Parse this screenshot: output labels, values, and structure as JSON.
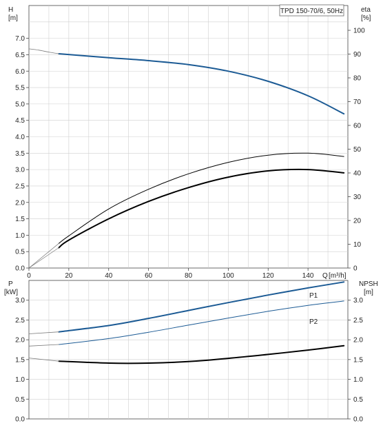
{
  "title": "TPD 150-70/6, 50Hz",
  "colors": {
    "grid": "#cfcfcf",
    "axis": "#444444",
    "blue": "#1b5a94",
    "black": "#000000",
    "thin": "#7a7a7a"
  },
  "top_panel": {
    "left_axis": {
      "name": "H",
      "unit": "[m]"
    },
    "right_axis": {
      "name": "eta",
      "unit": "[%]"
    },
    "x_axis": {
      "name": "Q",
      "unit": "[m³/h]"
    }
  },
  "bottom_panel": {
    "left_axis": {
      "name": "P",
      "unit": "[kW]"
    },
    "right_axis": {
      "name": "NPSH",
      "unit": "[m]"
    },
    "labels": {
      "p1": "P1",
      "p2": "P2"
    }
  },
  "chart_data": [
    {
      "type": "line",
      "x": {
        "ticks": [
          0,
          20,
          40,
          60,
          80,
          100,
          120,
          140
        ],
        "tick_labels": [
          "0",
          "20",
          "40",
          "60",
          "80",
          "100",
          "120",
          "140"
        ],
        "range": [
          0,
          160
        ]
      },
      "y_left": {
        "ticks": [
          0,
          0.5,
          1,
          1.5,
          2,
          2.5,
          3,
          3.5,
          4,
          4.5,
          5,
          5.5,
          6,
          6.5,
          7
        ],
        "tick_labels": [
          "0.0",
          "0.5",
          "1.0",
          "1.5",
          "2.0",
          "2.5",
          "3.0",
          "3.5",
          "4.0",
          "4.5",
          "5.0",
          "5.5",
          "6.0",
          "6.5",
          "7.0"
        ],
        "range": [
          0,
          8
        ]
      },
      "y_right": {
        "ticks": [
          0,
          10,
          20,
          30,
          40,
          50,
          60,
          70,
          80,
          90,
          100
        ],
        "tick_labels": [
          "0",
          "10",
          "20",
          "30",
          "40",
          "50",
          "60",
          "70",
          "80",
          "90",
          "100"
        ],
        "range": [
          0,
          100
        ]
      },
      "grid": true,
      "series": [
        {
          "id": "H",
          "axis": "left",
          "color": "blue",
          "width": 2,
          "x": [
            15,
            40,
            60,
            80,
            100,
            120,
            140,
            158
          ],
          "y": [
            6.53,
            6.41,
            6.32,
            6.2,
            6.0,
            5.69,
            5.25,
            4.7
          ]
        },
        {
          "id": "H_ext",
          "axis": "left",
          "color": "thin",
          "width": 0.8,
          "x": [
            0,
            5,
            10,
            15
          ],
          "y": [
            6.68,
            6.64,
            6.58,
            6.53
          ]
        },
        {
          "id": "eta_upper",
          "axis": "left",
          "color": "black",
          "width": 1,
          "x": [
            15,
            20,
            40,
            60,
            80,
            100,
            120,
            140,
            158
          ],
          "y": [
            0.75,
            0.98,
            1.8,
            2.4,
            2.87,
            3.22,
            3.44,
            3.5,
            3.4
          ]
        },
        {
          "id": "eta_lower",
          "axis": "left",
          "color": "black",
          "width": 2,
          "x": [
            15,
            20,
            40,
            60,
            80,
            100,
            120,
            140,
            158
          ],
          "y": [
            0.62,
            0.85,
            1.5,
            2.03,
            2.45,
            2.77,
            2.96,
            3.0,
            2.9
          ]
        },
        {
          "id": "eta_ext_a",
          "axis": "left",
          "color": "thin",
          "width": 0.7,
          "x": [
            0,
            15
          ],
          "y": [
            0,
            0.75
          ]
        },
        {
          "id": "eta_ext_b",
          "axis": "left",
          "color": "thin",
          "width": 0.7,
          "x": [
            0,
            15
          ],
          "y": [
            0,
            0.62
          ]
        }
      ]
    },
    {
      "type": "line",
      "x": {
        "range": [
          0,
          160
        ]
      },
      "y_left": {
        "ticks": [
          0,
          0.5,
          1,
          1.5,
          2,
          2.5,
          3
        ],
        "tick_labels": [
          "0.0",
          "0.5",
          "1.0",
          "1.5",
          "2.0",
          "2.5",
          "3.0"
        ],
        "range": [
          0,
          3.5
        ]
      },
      "y_right": {
        "ticks": [
          0,
          0.5,
          1,
          1.5,
          2,
          2.5,
          3
        ],
        "tick_labels": [
          "0.0",
          "0.5",
          "1.0",
          "1.5",
          "2.0",
          "2.5",
          "3.0"
        ],
        "range": [
          0,
          3.5
        ]
      },
      "grid": true,
      "series": [
        {
          "id": "P1",
          "axis": "left",
          "color": "blue",
          "width": 2,
          "x": [
            15,
            40,
            60,
            80,
            100,
            120,
            140,
            158
          ],
          "y": [
            2.2,
            2.36,
            2.54,
            2.74,
            2.94,
            3.13,
            3.31,
            3.46
          ]
        },
        {
          "id": "P1_ext",
          "axis": "left",
          "color": "thin",
          "width": 0.8,
          "x": [
            0,
            15
          ],
          "y": [
            2.15,
            2.2
          ]
        },
        {
          "id": "P2",
          "axis": "left",
          "color": "blue",
          "width": 1,
          "x": [
            15,
            40,
            60,
            80,
            100,
            120,
            140,
            158
          ],
          "y": [
            1.88,
            2.03,
            2.19,
            2.37,
            2.55,
            2.72,
            2.87,
            2.98
          ]
        },
        {
          "id": "P2_ext",
          "axis": "left",
          "color": "thin",
          "width": 0.8,
          "x": [
            0,
            15
          ],
          "y": [
            1.84,
            1.88
          ]
        },
        {
          "id": "NPSH",
          "axis": "left",
          "color": "black",
          "width": 2,
          "x": [
            15,
            40,
            60,
            80,
            100,
            120,
            140,
            158
          ],
          "y": [
            1.46,
            1.41,
            1.41,
            1.45,
            1.53,
            1.63,
            1.74,
            1.85
          ]
        },
        {
          "id": "NPSH_ext",
          "axis": "left",
          "color": "thin",
          "width": 0.8,
          "x": [
            0,
            15
          ],
          "y": [
            1.54,
            1.46
          ]
        }
      ]
    }
  ]
}
